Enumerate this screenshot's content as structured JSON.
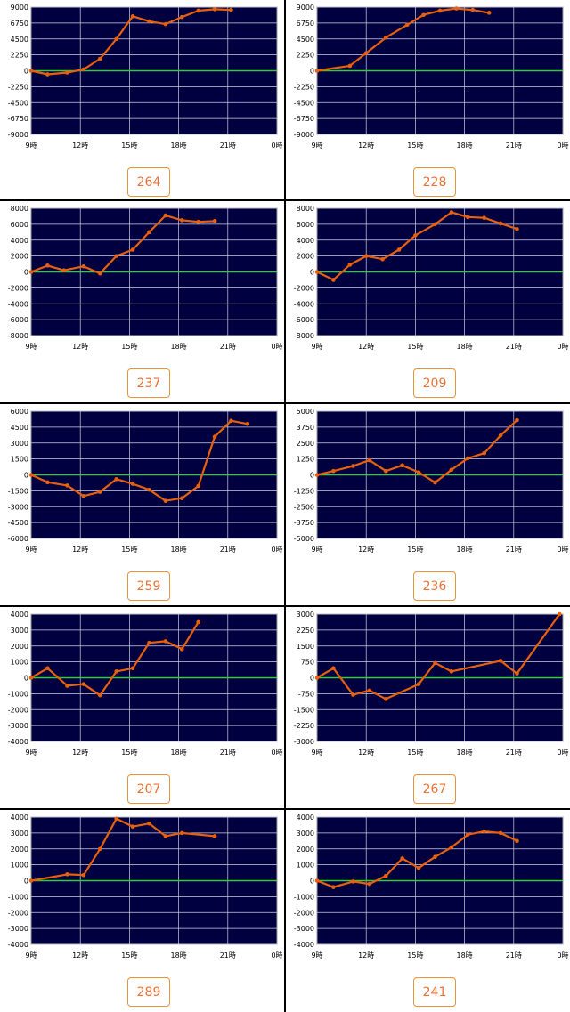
{
  "colors": {
    "plot_background": "#000040",
    "grid": "#cfcfe0",
    "zero_line": "#33cc33",
    "series": "#e8600c",
    "badge_text": "#e8733a",
    "badge_border": "#e8943a"
  },
  "chart_data": [
    {
      "type": "line",
      "badge": "264",
      "x_tick_labels": [
        "9時",
        "12時",
        "15時",
        "18時",
        "21時",
        "0時"
      ],
      "xlim": [
        9,
        24
      ],
      "ylim": [
        -9000,
        9000
      ],
      "y_ticks": [
        9000,
        6750,
        4500,
        2250,
        0,
        -2250,
        -4500,
        -6750,
        -9000
      ],
      "x": [
        9,
        10,
        11.2,
        12.2,
        13.2,
        14.2,
        15.2,
        16.2,
        17.2,
        18.2,
        19.2,
        20.2,
        21.2
      ],
      "values": [
        0,
        -500,
        -250,
        200,
        1700,
        4500,
        7700,
        7000,
        6600,
        7600,
        8500,
        8700,
        8600
      ]
    },
    {
      "type": "line",
      "badge": "228",
      "x_tick_labels": [
        "9時",
        "12時",
        "15時",
        "18時",
        "21時",
        "0時"
      ],
      "xlim": [
        9,
        24
      ],
      "ylim": [
        -9000,
        9000
      ],
      "y_ticks": [
        9000,
        6750,
        4500,
        2250,
        0,
        -2250,
        -4500,
        -6750,
        -9000
      ],
      "x": [
        9,
        11,
        12,
        13.2,
        14.5,
        15.5,
        16.5,
        17.5,
        18.5,
        19.5
      ],
      "values": [
        0,
        700,
        2500,
        4700,
        6500,
        7900,
        8500,
        8800,
        8600,
        8200
      ]
    },
    {
      "type": "line",
      "badge": "237",
      "x_tick_labels": [
        "9時",
        "12時",
        "15時",
        "18時",
        "21時",
        "0時"
      ],
      "xlim": [
        9,
        24
      ],
      "ylim": [
        -8000,
        8000
      ],
      "y_ticks": [
        8000,
        6000,
        4000,
        2000,
        0,
        -2000,
        -4000,
        -6000,
        -8000
      ],
      "x": [
        9,
        10,
        11,
        12.2,
        13.2,
        14.2,
        15.2,
        16.2,
        17.2,
        18.2,
        19.2,
        20.2
      ],
      "values": [
        0,
        800,
        200,
        700,
        -200,
        2000,
        2800,
        5000,
        7100,
        6500,
        6300,
        6400
      ]
    },
    {
      "type": "line",
      "badge": "209",
      "x_tick_labels": [
        "9時",
        "12時",
        "15時",
        "18時",
        "21時",
        "0時"
      ],
      "xlim": [
        9,
        24
      ],
      "ylim": [
        -8000,
        8000
      ],
      "y_ticks": [
        8000,
        6000,
        4000,
        2000,
        0,
        -2000,
        -4000,
        -6000,
        -8000
      ],
      "x": [
        9,
        10,
        11,
        12,
        13,
        14,
        15,
        16.2,
        17.2,
        18.2,
        19.2,
        20.2,
        21.2
      ],
      "values": [
        0,
        -1000,
        900,
        2000,
        1600,
        2800,
        4600,
        6000,
        7500,
        6900,
        6800,
        6100,
        5400
      ]
    },
    {
      "type": "line",
      "badge": "259",
      "x_tick_labels": [
        "9時",
        "12時",
        "15時",
        "18時",
        "21時",
        "0時"
      ],
      "xlim": [
        9,
        24
      ],
      "ylim": [
        -6000,
        6000
      ],
      "y_ticks": [
        6000,
        4500,
        3000,
        1500,
        0,
        -1500,
        -3000,
        -4500,
        -6000
      ],
      "x": [
        9,
        10,
        11.2,
        12.2,
        13.2,
        14.2,
        15.2,
        16.2,
        17.2,
        18.2,
        19.2,
        20.2,
        21.2,
        22.2
      ],
      "values": [
        0,
        -700,
        -1000,
        -2000,
        -1600,
        -400,
        -850,
        -1400,
        -2450,
        -2200,
        -1050,
        3600,
        5100,
        4800
      ]
    },
    {
      "type": "line",
      "badge": "236",
      "x_tick_labels": [
        "9時",
        "12時",
        "15時",
        "18時",
        "21時",
        "0時"
      ],
      "xlim": [
        9,
        24
      ],
      "ylim": [
        -5000,
        5000
      ],
      "y_ticks": [
        5000,
        3750,
        2500,
        1250,
        0,
        -1250,
        -2500,
        -3750,
        -5000
      ],
      "x": [
        9,
        10,
        11.2,
        12.2,
        13.2,
        14.2,
        15.2,
        16.2,
        17.2,
        18.2,
        19.2,
        20.2,
        21.2
      ],
      "values": [
        0,
        300,
        700,
        1150,
        300,
        750,
        200,
        -600,
        400,
        1300,
        1700,
        3100,
        4300
      ]
    },
    {
      "type": "line",
      "badge": "207",
      "x_tick_labels": [
        "9時",
        "12時",
        "15時",
        "18時",
        "21時",
        "0時"
      ],
      "xlim": [
        9,
        24
      ],
      "ylim": [
        -4000,
        4000
      ],
      "y_ticks": [
        4000,
        3000,
        2000,
        1000,
        0,
        -1000,
        -2000,
        -3000,
        -4000
      ],
      "x": [
        9,
        10,
        11.2,
        12.2,
        13.2,
        14.2,
        15.2,
        16.2,
        17.2,
        18.2,
        19.2
      ],
      "values": [
        0,
        600,
        -500,
        -400,
        -1100,
        400,
        600,
        2200,
        2300,
        1800,
        3500
      ]
    },
    {
      "type": "line",
      "badge": "267",
      "x_tick_labels": [
        "9時",
        "12時",
        "15時",
        "18時",
        "21時",
        "0時"
      ],
      "xlim": [
        9,
        24
      ],
      "ylim": [
        -3000,
        3000
      ],
      "y_ticks": [
        3000,
        2250,
        1500,
        750,
        0,
        -750,
        -1500,
        -2250,
        -3000
      ],
      "x": [
        9,
        10,
        11.2,
        12.2,
        13.2,
        15.2,
        16.2,
        17.2,
        20.2,
        21.2,
        23.8
      ],
      "values": [
        0,
        450,
        -800,
        -600,
        -1000,
        -300,
        700,
        300,
        800,
        200,
        3000
      ]
    },
    {
      "type": "line",
      "badge": "289",
      "x_tick_labels": [
        "9時",
        "12時",
        "15時",
        "18時",
        "21時",
        "0時"
      ],
      "xlim": [
        9,
        24
      ],
      "ylim": [
        -4000,
        4000
      ],
      "y_ticks": [
        4000,
        3000,
        2000,
        1000,
        0,
        -1000,
        -2000,
        -3000,
        -4000
      ],
      "x": [
        9,
        11.2,
        12.2,
        13.2,
        14.2,
        15.2,
        16.2,
        17.2,
        18.2,
        20.2
      ],
      "values": [
        0,
        400,
        350,
        2000,
        3900,
        3400,
        3600,
        2800,
        3000,
        2800
      ]
    },
    {
      "type": "line",
      "badge": "241",
      "x_tick_labels": [
        "9時",
        "12時",
        "15時",
        "18時",
        "21時",
        "0時"
      ],
      "xlim": [
        9,
        24
      ],
      "ylim": [
        -4000,
        4000
      ],
      "y_ticks": [
        4000,
        3000,
        2000,
        1000,
        0,
        -1000,
        -2000,
        -3000,
        -4000
      ],
      "x": [
        9,
        10,
        11.2,
        12.2,
        13.2,
        14.2,
        15.2,
        16.2,
        17.2,
        18.2,
        19.2,
        20.2,
        21.2
      ],
      "values": [
        0,
        -400,
        -50,
        -200,
        300,
        1400,
        800,
        1500,
        2100,
        2900,
        3100,
        3000,
        2500
      ]
    }
  ]
}
